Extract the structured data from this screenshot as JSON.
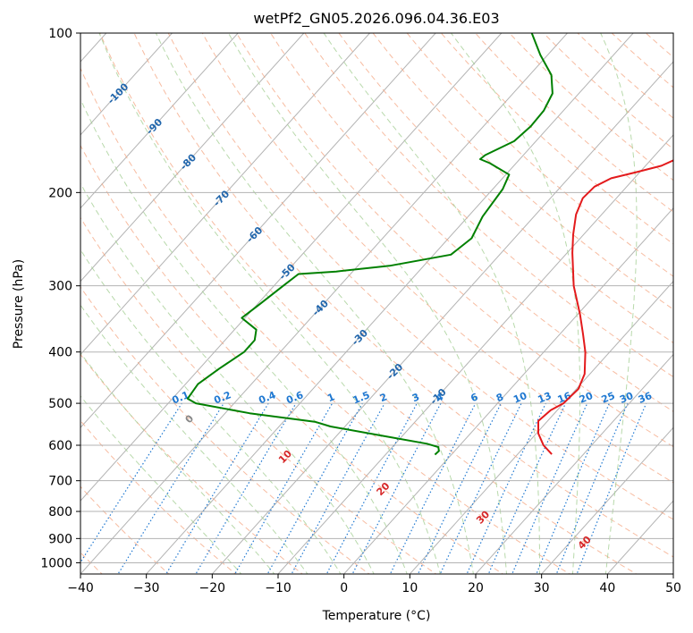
{
  "chart_data": {
    "type": "skew-t",
    "title": "wetPf2_GN05.2026.096.04.36.E03",
    "xlabel": "Temperature (°C)",
    "ylabel": "Pressure (hPa)",
    "xlim": [
      -40,
      50
    ],
    "ylim": [
      1050,
      100
    ],
    "x_ticks": [
      -40,
      -30,
      -20,
      -10,
      0,
      10,
      20,
      30,
      40,
      50
    ],
    "y_ticks": [
      100,
      200,
      300,
      400,
      500,
      600,
      700,
      800,
      900,
      1000
    ],
    "grid": true,
    "colors": {
      "temperature": "#e31a1c",
      "dewpoint": "#008000",
      "isotherm": "#b3b3b3",
      "dry_adiabat": "#f4a582",
      "moist_adiabat": "#a6d096",
      "mixing_ratio": "#1f78d1",
      "isotherm_label": "#2166ac",
      "dry_adiabat_label": "#d62728"
    },
    "series": [
      {
        "name": "temperature",
        "points": [
          [
            624,
            15.2
          ],
          [
            600,
            12.7
          ],
          [
            570,
            10.3
          ],
          [
            540,
            8.6
          ],
          [
            515,
            9.0
          ],
          [
            500,
            10.0
          ],
          [
            470,
            10.3
          ],
          [
            440,
            9.2
          ],
          [
            400,
            6.3
          ],
          [
            370,
            3.5
          ],
          [
            340,
            0.4
          ],
          [
            300,
            -4.5
          ],
          [
            260,
            -9.2
          ],
          [
            240,
            -11.6
          ],
          [
            220,
            -13.9
          ],
          [
            205,
            -15.1
          ],
          [
            195,
            -14.9
          ],
          [
            188,
            -13.5
          ],
          [
            183,
            -10.5
          ],
          [
            178,
            -7.6
          ],
          [
            172,
            -6.0
          ],
          [
            160,
            -6.3
          ],
          [
            145,
            -6.8
          ],
          [
            130,
            -7.3
          ],
          [
            120,
            -8.4
          ],
          [
            110,
            -10.1
          ],
          [
            100,
            -12.0
          ]
        ]
      },
      {
        "name": "dewpoint",
        "points": [
          [
            625,
            -2.5
          ],
          [
            615,
            -2.4
          ],
          [
            605,
            -3.0
          ],
          [
            596,
            -5.2
          ],
          [
            575,
            -13.3
          ],
          [
            553,
            -22.2
          ],
          [
            542,
            -25.1
          ],
          [
            522,
            -36.3
          ],
          [
            500,
            -45.8
          ],
          [
            490,
            -47.7
          ],
          [
            460,
            -48.1
          ],
          [
            430,
            -47.0
          ],
          [
            400,
            -45.5
          ],
          [
            380,
            -45.5
          ],
          [
            363,
            -46.7
          ],
          [
            345,
            -50.5
          ],
          [
            326,
            -49.7
          ],
          [
            300,
            -48.6
          ],
          [
            285,
            -47.9
          ],
          [
            282,
            -42.5
          ],
          [
            275,
            -35.2
          ],
          [
            262,
            -27.4
          ],
          [
            244,
            -26.5
          ],
          [
            222,
            -27.8
          ],
          [
            197,
            -28.5
          ],
          [
            185,
            -29.5
          ],
          [
            176,
            -34.0
          ],
          [
            173,
            -36.0
          ],
          [
            170,
            -35.8
          ],
          [
            160,
            -33.3
          ],
          [
            150,
            -32.8
          ],
          [
            140,
            -33.0
          ],
          [
            130,
            -34.0
          ],
          [
            120,
            -36.7
          ],
          [
            110,
            -41.1
          ],
          [
            100,
            -45.4
          ]
        ]
      }
    ],
    "isotherm_labels": [
      "-100",
      "-90",
      "-80",
      "-70",
      "-60",
      "-50",
      "-40",
      "-30",
      "-20",
      "-10"
    ],
    "mixing_ratio_labels": [
      "0.1",
      "0.2",
      "0.4",
      "0.6",
      "1",
      "1.5",
      "2",
      "3",
      "4",
      "6",
      "8",
      "10",
      "13",
      "16",
      "20",
      "25",
      "30",
      "36"
    ],
    "dry_adiabat_labels": [
      "0",
      "10",
      "20",
      "30",
      "40"
    ]
  }
}
